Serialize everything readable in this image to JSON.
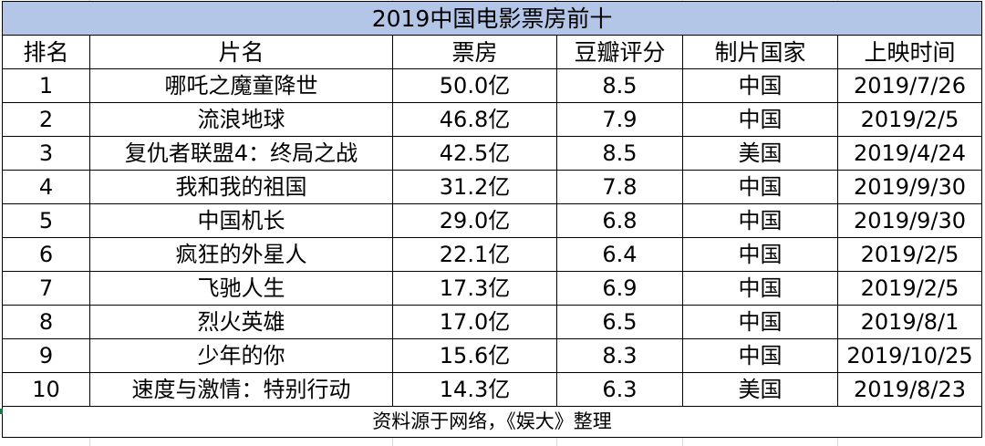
{
  "table": {
    "title": "2019中国电影票房前十",
    "headers": [
      "排名",
      "片名",
      "票房",
      "豆瓣评分",
      "制片国家",
      "上映时间"
    ],
    "rows": [
      [
        "1",
        "哪吒之魔童降世",
        "50.0亿",
        "8.5",
        "中国",
        "2019/7/26"
      ],
      [
        "2",
        "流浪地球",
        "46.8亿",
        "7.9",
        "中国",
        "2019/2/5"
      ],
      [
        "3",
        "复仇者联盟4：终局之战",
        "42.5亿",
        "8.5",
        "美国",
        "2019/4/24"
      ],
      [
        "4",
        "我和我的祖国",
        "31.2亿",
        "7.8",
        "中国",
        "2019/9/30"
      ],
      [
        "5",
        "中国机长",
        "29.0亿",
        "6.8",
        "中国",
        "2019/9/30"
      ],
      [
        "6",
        "疯狂的外星人",
        "22.1亿",
        "6.4",
        "中国",
        "2019/2/5"
      ],
      [
        "7",
        "飞驰人生",
        "17.3亿",
        "6.9",
        "中国",
        "2019/2/5"
      ],
      [
        "8",
        "烈火英雄",
        "17.0亿",
        "6.5",
        "中国",
        "2019/8/1"
      ],
      [
        "9",
        "少年的你",
        "15.6亿",
        "8.3",
        "中国",
        "2019/10/25"
      ],
      [
        "10",
        "速度与激情：特别行动",
        "14.3亿",
        "6.3",
        "美国",
        "2019/8/23"
      ]
    ],
    "footer": "资料源于网络，《娱大》整理"
  },
  "colors": {
    "title_fill": "#b4c6e7",
    "border": "#000000",
    "gridline": "#d9d9d9",
    "selection_accent": "#217346"
  }
}
